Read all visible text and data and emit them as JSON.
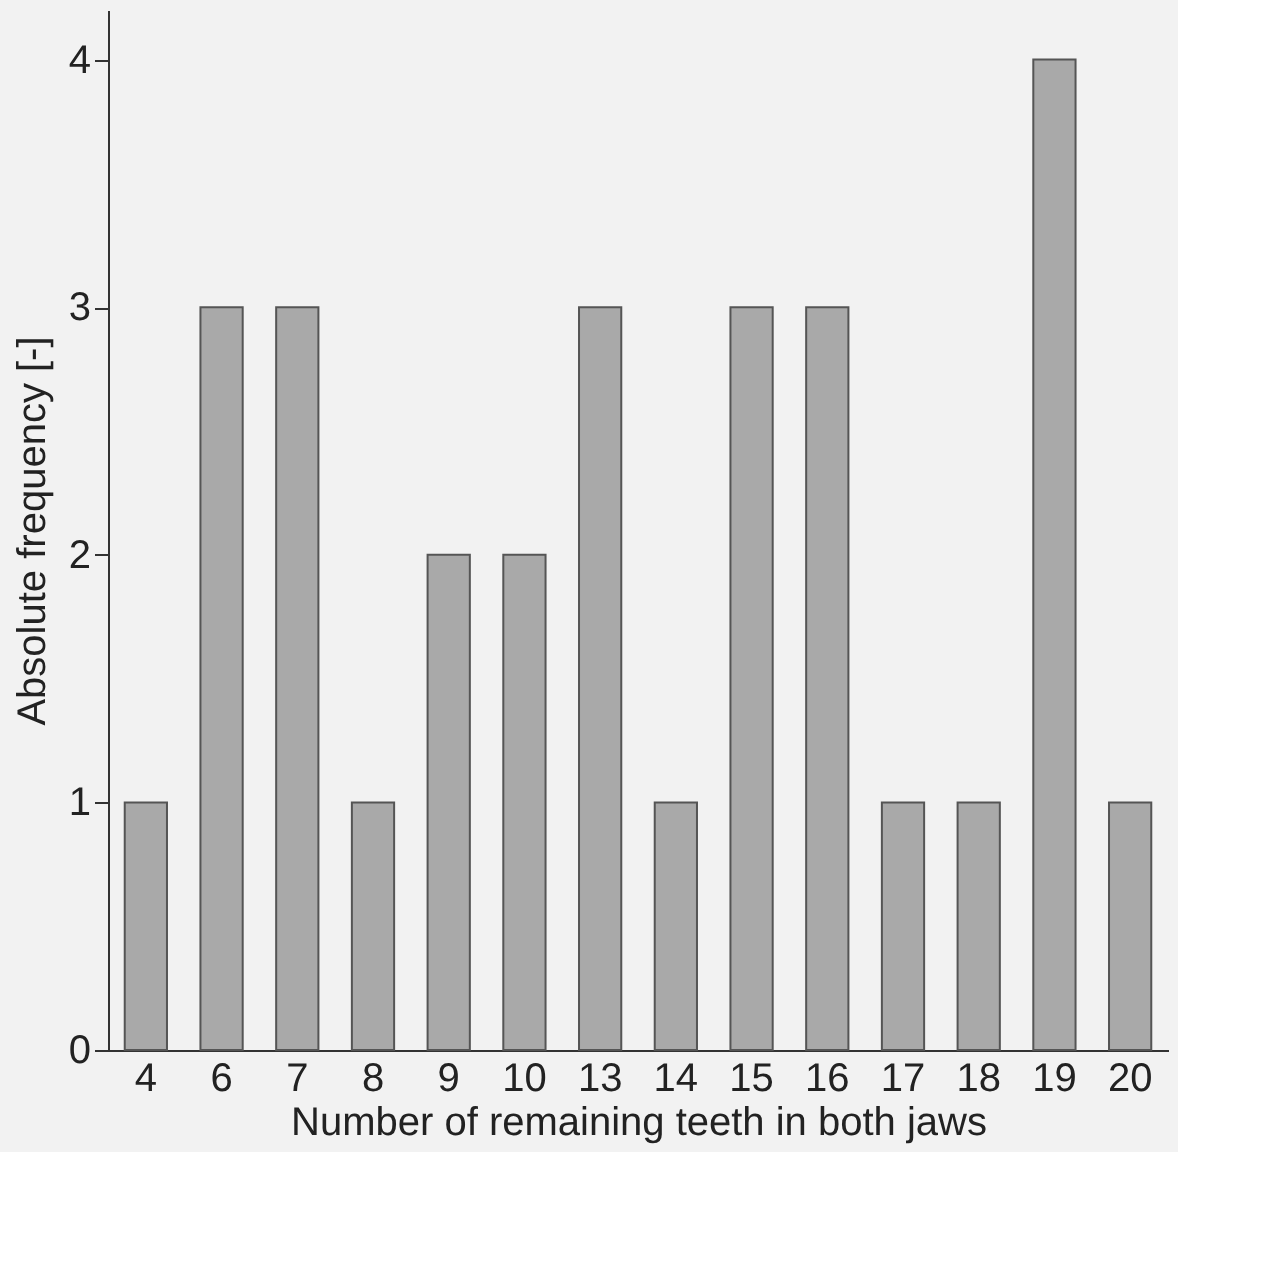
{
  "chart_data": {
    "type": "bar",
    "xlabel": "Number of remaining teeth in both jaws",
    "ylabel": "Absolute frequency [-]",
    "categories": [
      "4",
      "6",
      "7",
      "8",
      "9",
      "10",
      "13",
      "14",
      "15",
      "16",
      "17",
      "18",
      "19",
      "20"
    ],
    "values": [
      1,
      3,
      3,
      1,
      2,
      2,
      3,
      1,
      3,
      3,
      1,
      1,
      4,
      1
    ],
    "color": "#a9a9a9",
    "ylim": [
      0,
      4.2
    ],
    "yticks": [
      0,
      1,
      2,
      3,
      4
    ],
    "grid": false
  }
}
